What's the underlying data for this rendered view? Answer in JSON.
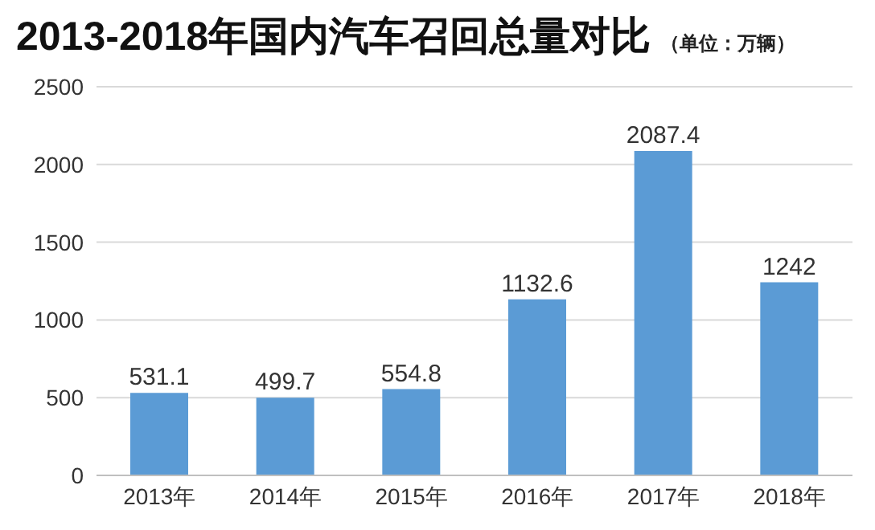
{
  "chart_data": {
    "type": "bar",
    "title": "2013-2018年国内汽车召回总量对比",
    "subtitle": "（单位：万辆）",
    "categories": [
      "2013年",
      "2014年",
      "2015年",
      "2016年",
      "2017年",
      "2018年"
    ],
    "values": [
      531.1,
      499.7,
      554.8,
      1132.6,
      2087.4,
      1242
    ],
    "color": "#5b9bd5",
    "ylim": [
      0,
      2500
    ],
    "yticks": [
      0,
      500,
      1000,
      1500,
      2000,
      2500
    ],
    "grid": "y",
    "data_labels": true
  }
}
